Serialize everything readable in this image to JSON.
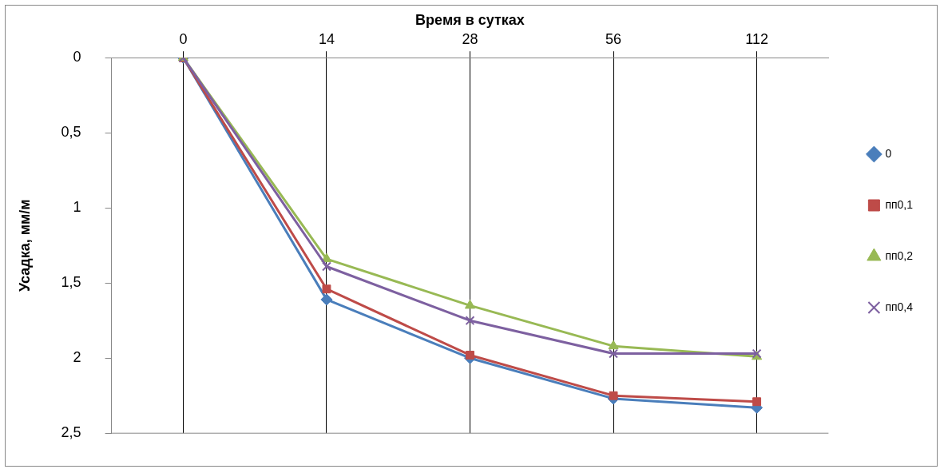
{
  "chart_data": {
    "type": "line",
    "xlabel": "Время в сутках",
    "ylabel": "Усадка, мм/м",
    "categories": [
      "0",
      "14",
      "28",
      "56",
      "112"
    ],
    "ylim": [
      2.5,
      0
    ],
    "yticks": [
      0,
      {
        "value": 0.5,
        "label": "0,5"
      },
      1,
      {
        "value": 1.5,
        "label": "1,5"
      },
      2,
      {
        "value": 2.5,
        "label": "2,5"
      }
    ],
    "grid": "x",
    "legend": "right",
    "series": [
      {
        "name": "0",
        "color": "#4a7ebb",
        "marker": "diamond",
        "values": [
          0,
          1.61,
          2.0,
          2.27,
          2.33
        ]
      },
      {
        "name": "пп0,1",
        "color": "#be4b48",
        "marker": "square",
        "values": [
          0,
          1.54,
          1.98,
          2.25,
          2.29
        ]
      },
      {
        "name": "пп0,2",
        "color": "#98b954",
        "marker": "triangle",
        "values": [
          0,
          1.34,
          1.65,
          1.92,
          1.99
        ]
      },
      {
        "name": "пп0,4",
        "color": "#7d60a0",
        "marker": "cross",
        "values": [
          0,
          1.39,
          1.75,
          1.97,
          1.97
        ]
      }
    ]
  }
}
